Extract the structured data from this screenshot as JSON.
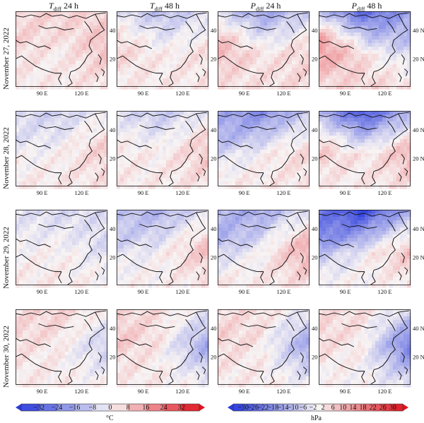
{
  "columns": [
    {
      "var": "T",
      "sub": "diff",
      "rest": " 24 h"
    },
    {
      "var": "T",
      "sub": "diff",
      "rest": " 48 h"
    },
    {
      "var": "P",
      "sub": "diff",
      "rest": " 24 h"
    },
    {
      "var": "P",
      "sub": "diff",
      "rest": " 48 h"
    }
  ],
  "rows": [
    {
      "label": "November 27, 2022"
    },
    {
      "label": "November 28, 2022"
    },
    {
      "label": "November 29, 2022"
    },
    {
      "label": "November 30, 2022"
    }
  ],
  "axes": {
    "x_ticks": [
      "90 E",
      "120 E"
    ],
    "y_ticks": [
      "40 N",
      "20 N"
    ]
  },
  "colorbars": {
    "temperature": {
      "unit": "°C",
      "ticks": [
        "−32",
        "−24",
        "−16",
        "−8",
        "0",
        "8",
        "16",
        "24",
        "32"
      ],
      "range": [
        -32,
        32
      ]
    },
    "pressure": {
      "unit": "hPa",
      "ticks": [
        "−30",
        "−26",
        "−22",
        "−18",
        "−14",
        "−10",
        "−6",
        "−2",
        "2",
        "6",
        "10",
        "14",
        "18",
        "22",
        "26",
        "30"
      ],
      "range": [
        -30,
        30
      ]
    }
  },
  "colors": {
    "negative": "#2a3bdc",
    "neutral": "#f8f4f4",
    "positive": "#e0141e",
    "coast": "#111111"
  },
  "panels": [
    [
      {
        "field": "temperature",
        "north": 0.15,
        "east": 0.25,
        "west": 0.12,
        "south": 0.05
      },
      {
        "field": "temperature",
        "north": -0.3,
        "east": 0.1,
        "west": 0.2,
        "south": 0.05
      },
      {
        "field": "pressure",
        "north": -0.45,
        "east": 0.15,
        "west": 0.35,
        "south": 0.1
      },
      {
        "field": "pressure",
        "north": -0.75,
        "east": -0.3,
        "west": 0.55,
        "south": 0.15
      }
    ],
    [
      {
        "field": "temperature",
        "north": -0.2,
        "east": 0.2,
        "west": -0.1,
        "south": 0.05
      },
      {
        "field": "temperature",
        "north": -0.25,
        "east": 0.25,
        "west": 0.05,
        "south": 0.05
      },
      {
        "field": "pressure",
        "north": -0.55,
        "east": 0.15,
        "west": -0.3,
        "south": 0.05
      },
      {
        "field": "pressure",
        "north": -0.85,
        "east": 0.35,
        "west": 0.3,
        "south": 0.05
      }
    ],
    [
      {
        "field": "temperature",
        "north": -0.15,
        "east": -0.2,
        "west": -0.05,
        "south": 0.05
      },
      {
        "field": "temperature",
        "north": -0.35,
        "east": 0.3,
        "west": -0.2,
        "south": 0.02
      },
      {
        "field": "pressure",
        "north": -0.4,
        "east": 0.4,
        "west": -0.35,
        "south": 0.05
      },
      {
        "field": "pressure",
        "north": -0.9,
        "east": 0.3,
        "west": -0.5,
        "south": 0.0
      }
    ],
    [
      {
        "field": "temperature",
        "north": 0.15,
        "east": -0.3,
        "west": 0.1,
        "south": 0.05
      },
      {
        "field": "temperature",
        "north": 0.1,
        "east": -0.55,
        "west": 0.2,
        "south": 0.05
      },
      {
        "field": "pressure",
        "north": 0.1,
        "east": -0.55,
        "west": 0.15,
        "south": 0.05
      },
      {
        "field": "pressure",
        "north": 0.1,
        "east": -0.8,
        "west": 0.15,
        "south": 0.0
      }
    ]
  ]
}
